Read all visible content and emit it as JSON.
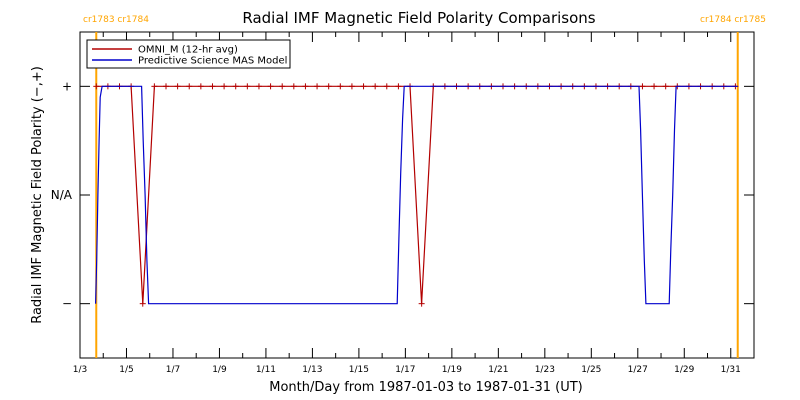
{
  "chart_data": {
    "type": "line",
    "title": "Radial IMF Magnetic Field Polarity Comparisons",
    "xlabel": "Month/Day from 1987-01-03 to 1987-01-31 (UT)",
    "ylabel": "Radial IMF Magnetic Field Polarity (−,+)",
    "x_range_days": [
      3,
      32
    ],
    "y_range": [
      -1.5,
      1.5
    ],
    "x_ticks": [
      {
        "day": 3,
        "label": "1/3"
      },
      {
        "day": 5,
        "label": "1/5"
      },
      {
        "day": 7,
        "label": "1/7"
      },
      {
        "day": 9,
        "label": "1/9"
      },
      {
        "day": 11,
        "label": "1/11"
      },
      {
        "day": 13,
        "label": "1/13"
      },
      {
        "day": 15,
        "label": "1/15"
      },
      {
        "day": 17,
        "label": "1/17"
      },
      {
        "day": 19,
        "label": "1/19"
      },
      {
        "day": 21,
        "label": "1/21"
      },
      {
        "day": 23,
        "label": "1/23"
      },
      {
        "day": 25,
        "label": "1/25"
      },
      {
        "day": 27,
        "label": "1/27"
      },
      {
        "day": 29,
        "label": "1/29"
      },
      {
        "day": 31,
        "label": "1/31"
      }
    ],
    "y_ticks": [
      {
        "value": 1,
        "label": "+"
      },
      {
        "value": 0,
        "label": "N/A"
      },
      {
        "value": -1,
        "label": "−"
      }
    ],
    "carrington_lines": [
      {
        "day": 3.7,
        "label": "cr1783 cr1784",
        "color": "#ffa500",
        "side": "left"
      },
      {
        "day": 31.3,
        "label": "cr1784 cr1785",
        "color": "#ffa500",
        "side": "right"
      }
    ],
    "legend": {
      "placement": "top-left",
      "entries": [
        {
          "name": "OMNI_M (12-hr avg)",
          "color": "#b30000"
        },
        {
          "name": "Predictive Science MAS Model",
          "color": "#0000cc"
        }
      ]
    },
    "series": [
      {
        "name": "OMNI_M (12-hr avg)",
        "color": "#b30000",
        "marker": "+",
        "x": [
          3.7,
          4.2,
          4.7,
          5.2,
          5.7,
          6.2,
          6.7,
          7.2,
          7.7,
          8.2,
          8.7,
          9.2,
          9.7,
          10.2,
          10.7,
          11.2,
          11.7,
          12.2,
          12.7,
          13.2,
          13.7,
          14.2,
          14.7,
          15.2,
          15.7,
          16.2,
          16.7,
          17.2,
          17.7,
          18.2,
          18.7,
          19.2,
          19.7,
          20.2,
          20.7,
          21.2,
          21.7,
          22.2,
          22.7,
          23.2,
          23.7,
          24.2,
          24.7,
          25.2,
          25.7,
          26.2,
          26.7,
          27.2,
          27.7,
          28.2,
          28.7,
          29.2,
          29.7,
          30.2,
          30.7,
          31.2
        ],
        "y": [
          1,
          1,
          1,
          1,
          -1,
          1,
          1,
          1,
          1,
          1,
          1,
          1,
          1,
          1,
          1,
          1,
          1,
          1,
          1,
          1,
          1,
          1,
          1,
          1,
          1,
          1,
          1,
          1,
          -1,
          1,
          1,
          1,
          1,
          1,
          1,
          1,
          1,
          1,
          1,
          1,
          1,
          1,
          1,
          1,
          1,
          1,
          1,
          1,
          1,
          1,
          1,
          1,
          1,
          1,
          1,
          1
        ]
      },
      {
        "name": "Predictive Science MAS Model",
        "color": "#0000cc",
        "x": [
          3.67,
          3.72,
          3.77,
          3.82,
          3.87,
          3.95,
          5.65,
          5.72,
          5.8,
          5.88,
          5.95,
          16.65,
          16.72,
          16.8,
          16.88,
          16.95,
          27.05,
          27.12,
          27.2,
          27.28,
          27.35,
          28.35,
          28.42,
          28.5,
          28.58,
          28.65,
          31.3
        ],
        "y": [
          -1,
          -0.6,
          0,
          0.5,
          0.9,
          1,
          1,
          0.5,
          0,
          -0.6,
          -1,
          -1,
          -0.4,
          0.2,
          0.7,
          1,
          1,
          0.6,
          0,
          -0.6,
          -1,
          -1,
          -0.5,
          0,
          0.6,
          1,
          1
        ]
      }
    ]
  }
}
